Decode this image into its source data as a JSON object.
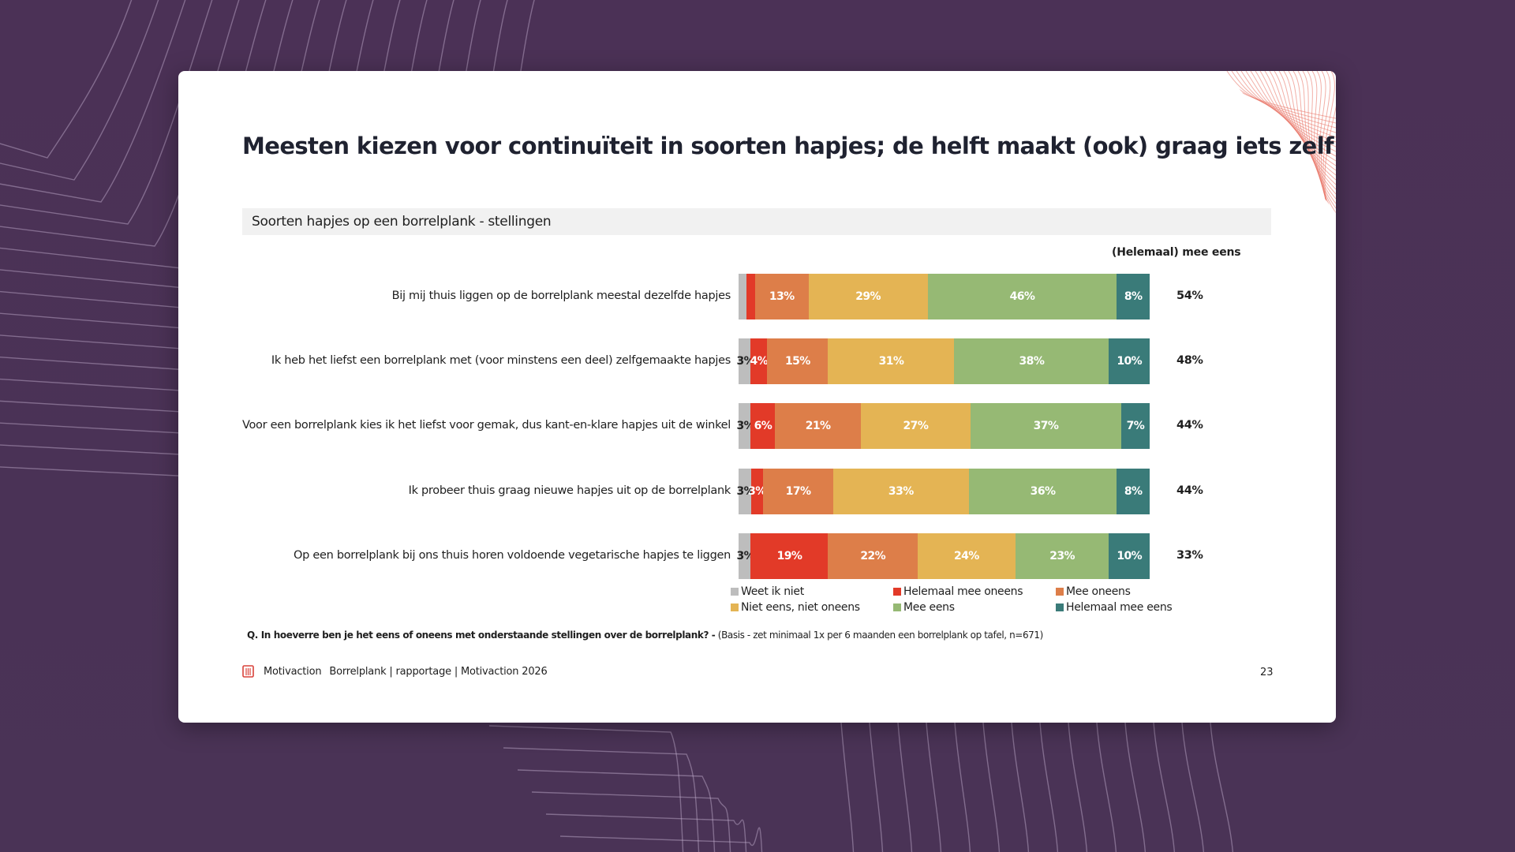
{
  "slide": {
    "title": "Meesten kiezen voor continuïteit in soorten hapjes; de helft maakt (ook) graag iets zelf",
    "section_label": "Soorten hapjes op een borrelplank - stellingen",
    "question_bold": "Q. In hoeverre ben je het eens of oneens met onderstaande stellingen over de borrelplank? -",
    "question_basis": " (Basis - zet minimaal 1x per 6 maanden een borrelplank op tafel, n=671)",
    "footer_brand": "Motivaction",
    "footer_crumb": "Borrelplank | rapportage | Motivaction 2026",
    "page_number": "23",
    "logo_icon": "motivaction-logo-icon"
  },
  "chart_data": {
    "type": "bar",
    "orientation": "horizontal",
    "stacked": true,
    "normalized": true,
    "title": "Soorten hapjes op een borrelplank - stellingen",
    "xlabel": "",
    "ylabel": "",
    "xlim": [
      0,
      100
    ],
    "unit": "%",
    "grid": false,
    "legend_position": "bottom",
    "summary_header": "(Helemaal) mee eens",
    "categories": [
      "Bij mij thuis liggen op de borrelplank meestal dezelfde hapjes",
      "Ik heb het liefst een borrelplank met (voor minstens een deel) zelfgemaakte hapjes",
      "Voor een borrelplank kies ik het liefst voor gemak, dus kant-en-klare hapjes uit de winkel",
      "Ik probeer thuis graag nieuwe hapjes uit op de borrelplank",
      "Op een borrelplank bij ons thuis horen voldoende vegetarische hapjes te liggen"
    ],
    "series": [
      {
        "name": "Weet ik niet",
        "color": "#bdbdbd",
        "values": [
          2,
          3,
          3,
          3,
          3
        ],
        "labels": [
          "",
          "3%",
          "3%",
          "3%",
          "3%"
        ]
      },
      {
        "name": "Helemaal mee oneens",
        "color": "#e23a28",
        "values": [
          2,
          4,
          6,
          3,
          19
        ],
        "labels": [
          "",
          "4%",
          "6%",
          "3%",
          "19%"
        ]
      },
      {
        "name": "Mee oneens",
        "color": "#dd7e49",
        "values": [
          13,
          15,
          21,
          17,
          22
        ],
        "labels": [
          "13%",
          "15%",
          "21%",
          "17%",
          "22%"
        ]
      },
      {
        "name": "Niet eens, niet oneens",
        "color": "#e4b454",
        "values": [
          29,
          31,
          27,
          33,
          24
        ],
        "labels": [
          "29%",
          "31%",
          "27%",
          "33%",
          "24%"
        ]
      },
      {
        "name": "Mee eens",
        "color": "#96b974",
        "values": [
          46,
          38,
          37,
          36,
          23
        ],
        "labels": [
          "46%",
          "38%",
          "37%",
          "36%",
          "23%"
        ]
      },
      {
        "name": "Helemaal mee eens",
        "color": "#3a7b79",
        "values": [
          8,
          10,
          7,
          8,
          10
        ],
        "labels": [
          "8%",
          "10%",
          "7%",
          "8%",
          "10%"
        ]
      }
    ],
    "totals": [
      "54%",
      "48%",
      "44%",
      "44%",
      "33%"
    ]
  }
}
